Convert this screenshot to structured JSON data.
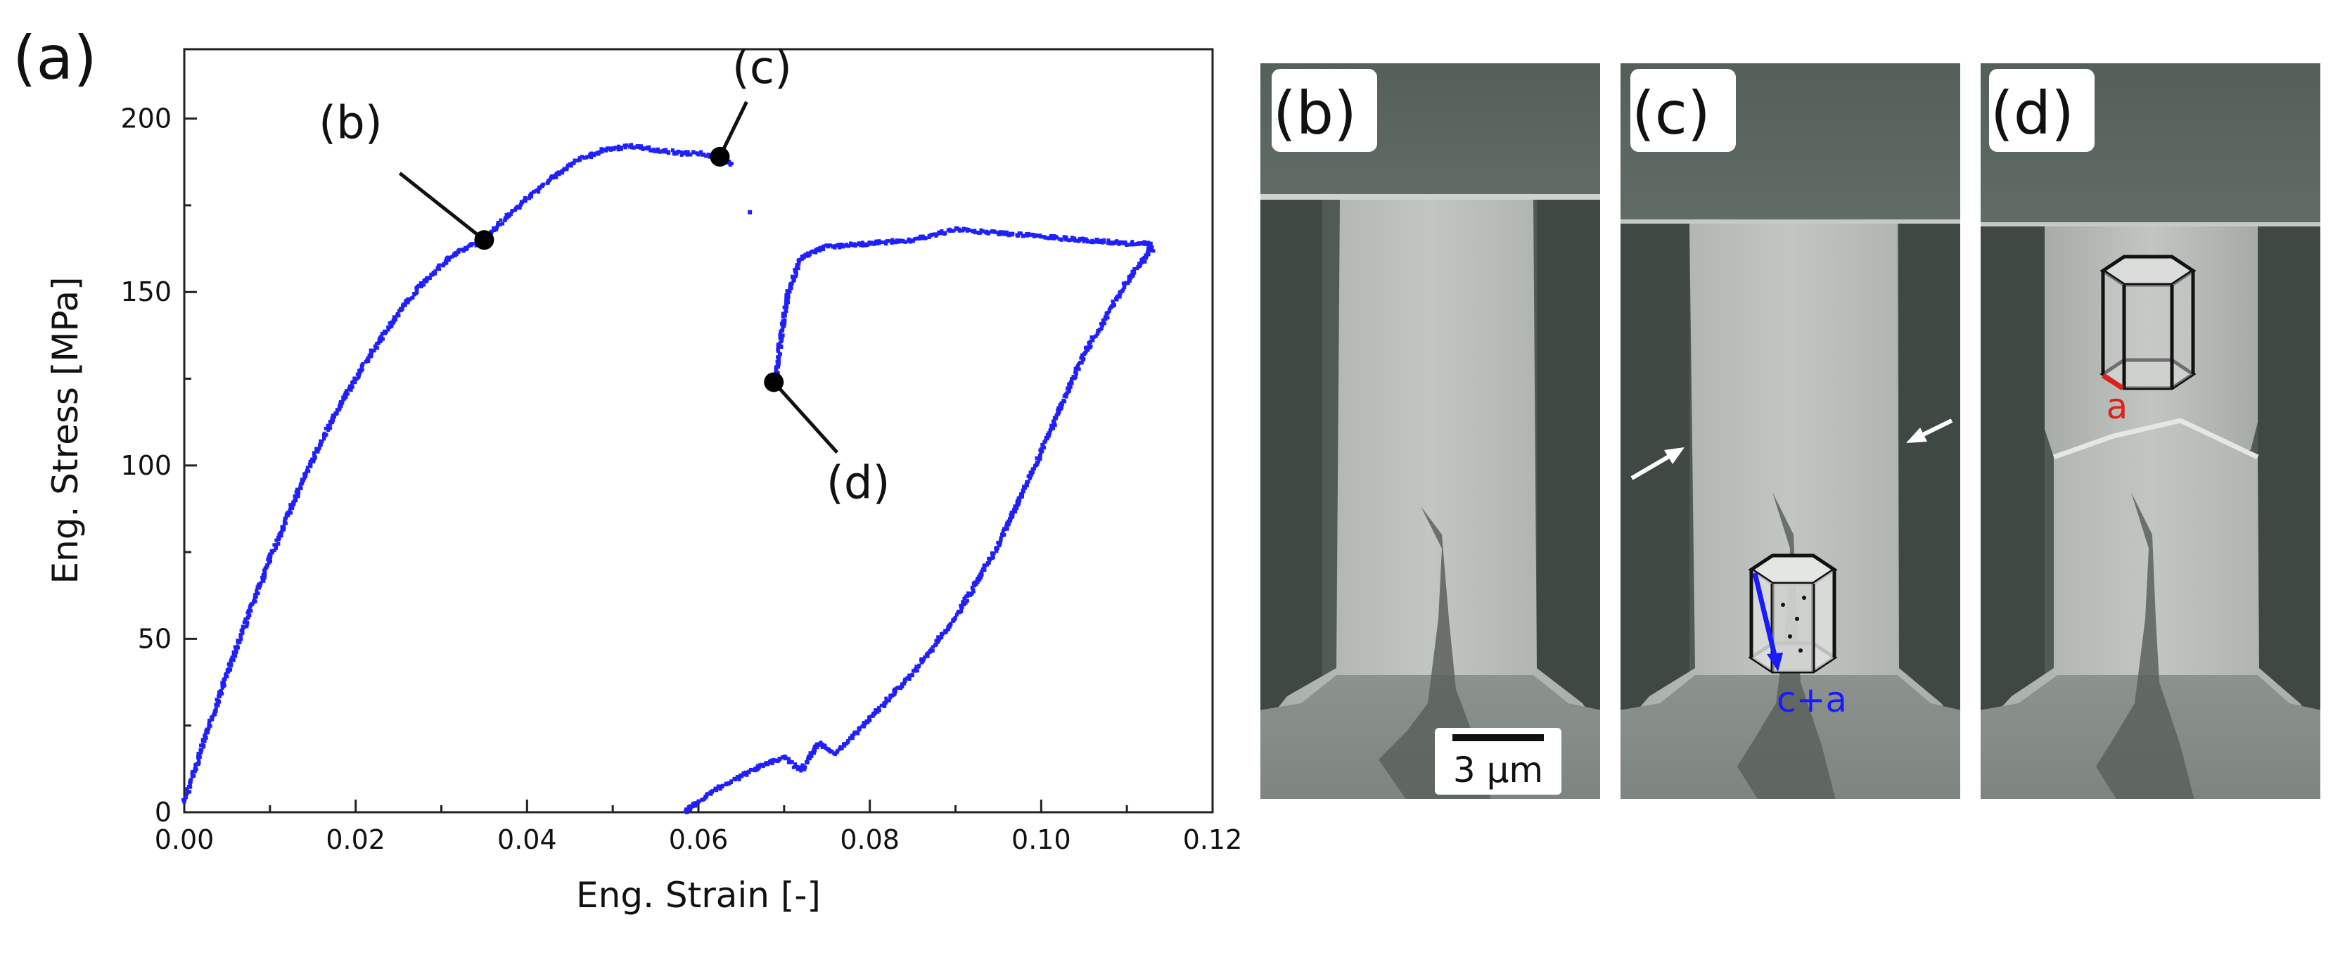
{
  "figure": {
    "panel_a_label": "(a)",
    "panel_b_label": "(b)",
    "panel_c_label": "(c)",
    "panel_d_label": "(d)",
    "scale_bar_label": "3 µm",
    "burgers_c_plus_a": "c+a",
    "burgers_a": "a",
    "colors": {
      "series": "#1f1fff",
      "marker": "#000000",
      "burgers_c_plus_a": "#1a1aff",
      "burgers_a": "#e0201a",
      "sem_background": "#4b5750"
    }
  },
  "chart_data": {
    "type": "scatter",
    "xlabel": "Eng. Strain [-]",
    "ylabel": "Eng. Stress [MPa]",
    "xlim": [
      0,
      0.12
    ],
    "ylim": [
      0,
      220
    ],
    "xticks": [
      0.0,
      0.02,
      0.04,
      0.06,
      0.08,
      0.1,
      0.12
    ],
    "xtick_labels": [
      "0.00",
      "0.02",
      "0.04",
      "0.06",
      "0.08",
      "0.10",
      "0.12"
    ],
    "yticks": [
      0,
      50,
      100,
      150,
      200
    ],
    "ytick_labels": [
      "0",
      "50",
      "100",
      "150",
      "200"
    ],
    "grid": false,
    "series": [
      {
        "x": [
          0.0,
          0.002,
          0.005,
          0.008,
          0.01,
          0.013,
          0.016,
          0.019,
          0.022,
          0.025,
          0.028,
          0.031,
          0.034,
          0.035,
          0.037,
          0.04,
          0.043,
          0.046,
          0.049,
          0.052,
          0.055,
          0.058,
          0.06,
          0.062,
          0.064
        ],
        "y": [
          3,
          18,
          40,
          60,
          73,
          91,
          107,
          121,
          133,
          144,
          153,
          160,
          164,
          165,
          170,
          177,
          183,
          188,
          191,
          192,
          191,
          190,
          190,
          189,
          187
        ]
      },
      {
        "x": [
          0.066
        ],
        "y": [
          173
        ]
      },
      {
        "x": [
          0.0585,
          0.061,
          0.064,
          0.067,
          0.07,
          0.072,
          0.074,
          0.076,
          0.08,
          0.085,
          0.09,
          0.095,
          0.1,
          0.105,
          0.11,
          0.1125,
          0.1128,
          0.113,
          0.1126,
          0.11,
          0.105,
          0.1,
          0.095,
          0.09,
          0.085,
          0.08,
          0.075,
          0.072,
          0.0705,
          0.0695,
          0.069
        ],
        "y": [
          0,
          5,
          9,
          13,
          16,
          12,
          20,
          17,
          27,
          40,
          56,
          77,
          104,
          132,
          153,
          161,
          163,
          162,
          164,
          164,
          165,
          166,
          167,
          168,
          165,
          164,
          163,
          160,
          150,
          135,
          122
        ]
      }
    ],
    "annotations": [
      {
        "label": "(b)",
        "x": 0.035,
        "y": 165
      },
      {
        "label": "(c)",
        "x": 0.0625,
        "y": 189
      },
      {
        "label": "(d)",
        "x": 0.0688,
        "y": 124
      }
    ]
  }
}
